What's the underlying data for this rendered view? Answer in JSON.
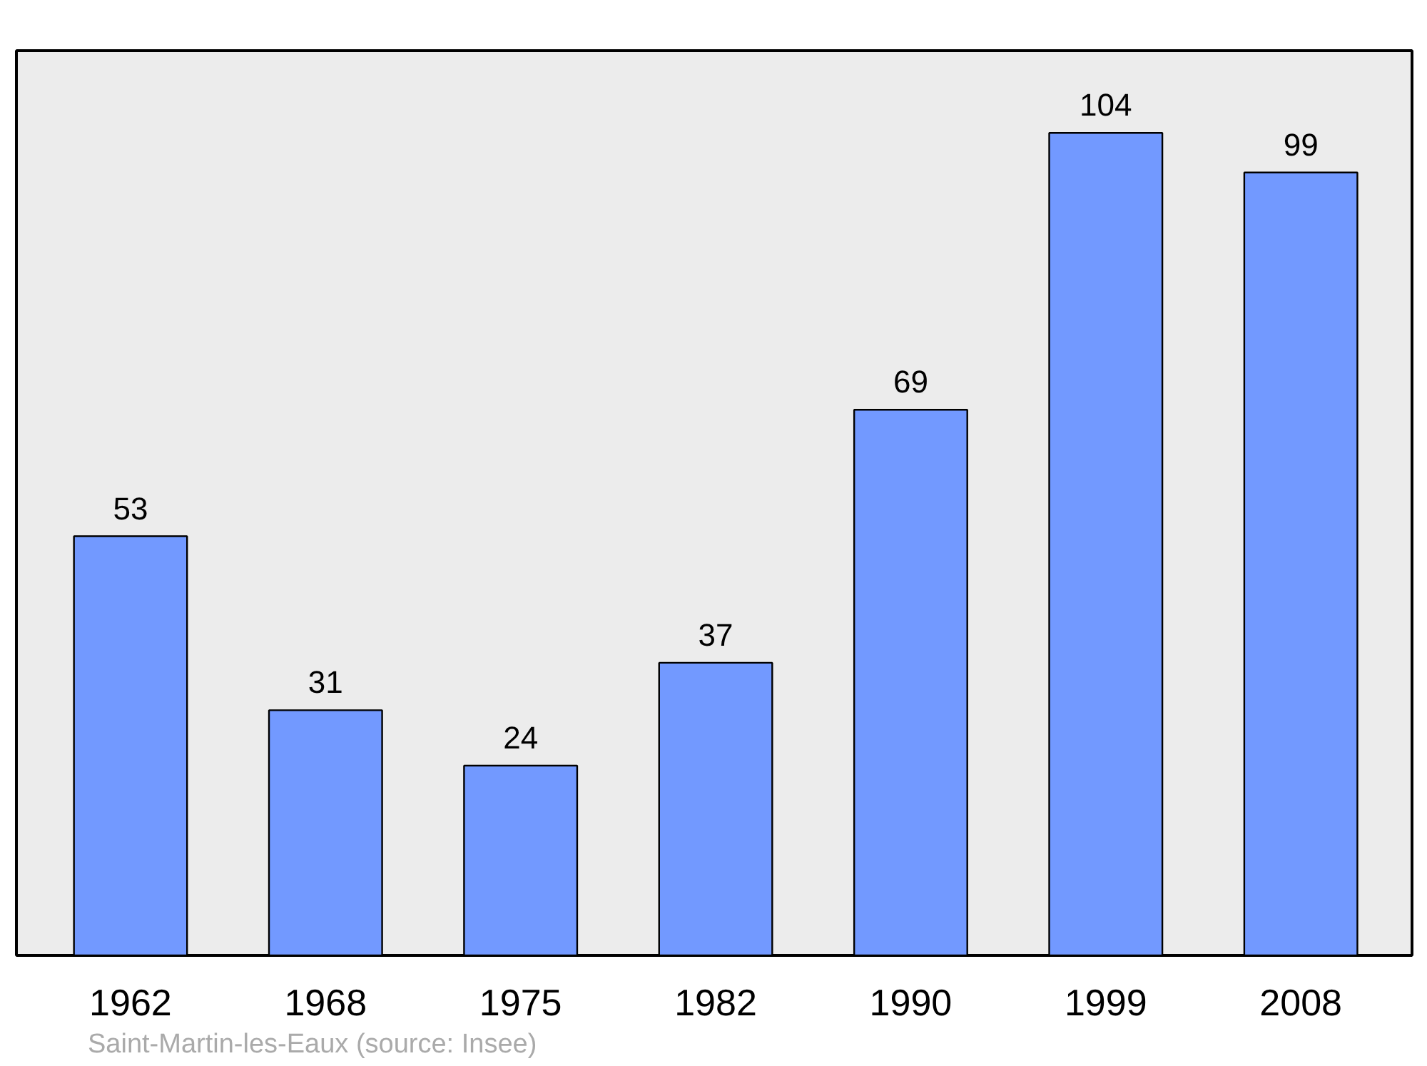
{
  "chart_data": {
    "type": "bar",
    "categories": [
      "1962",
      "1968",
      "1975",
      "1982",
      "1990",
      "1999",
      "2008"
    ],
    "values": [
      53,
      31,
      24,
      37,
      69,
      104,
      99
    ],
    "color": "#7299ff",
    "data_labels": true,
    "annotations": [
      "Saint-Martin-les-Eaux    (source: Insee)"
    ]
  }
}
